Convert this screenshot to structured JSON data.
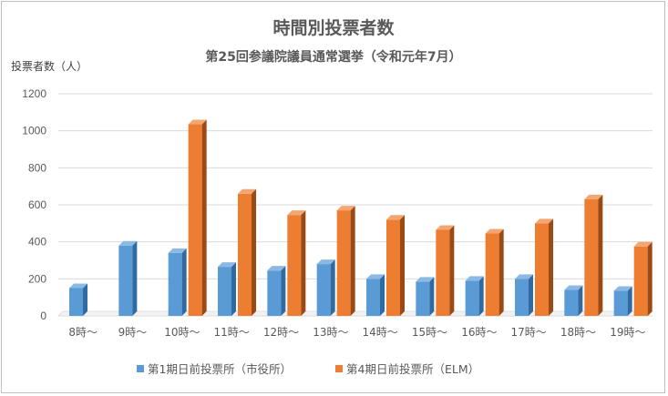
{
  "chart_data": {
    "type": "bar",
    "title": "時間別投票者数",
    "subtitle": "第25回参議院議員通常選挙（令和元年7月）",
    "ylabel": "投票者数（人）",
    "xlabel": "",
    "ylim": [
      0,
      1200
    ],
    "yticks": [
      0,
      200,
      400,
      600,
      800,
      1000,
      1200
    ],
    "grid": true,
    "legend_position": "bottom",
    "categories": [
      "8時～",
      "9時～",
      "10時～",
      "11時～",
      "12時～",
      "13時～",
      "14時～",
      "15時～",
      "16時～",
      "17時～",
      "18時～",
      "19時～"
    ],
    "series": [
      {
        "name": "第1期日前投票所（市役所）",
        "color": "#5b9bd5",
        "values": [
          150,
          380,
          340,
          265,
          245,
          280,
          200,
          185,
          190,
          200,
          140,
          135
        ]
      },
      {
        "name": "第4期日前投票所（ELM）",
        "color": "#ed7d31",
        "values": [
          null,
          null,
          1035,
          660,
          545,
          570,
          520,
          465,
          445,
          500,
          630,
          375
        ]
      }
    ]
  }
}
